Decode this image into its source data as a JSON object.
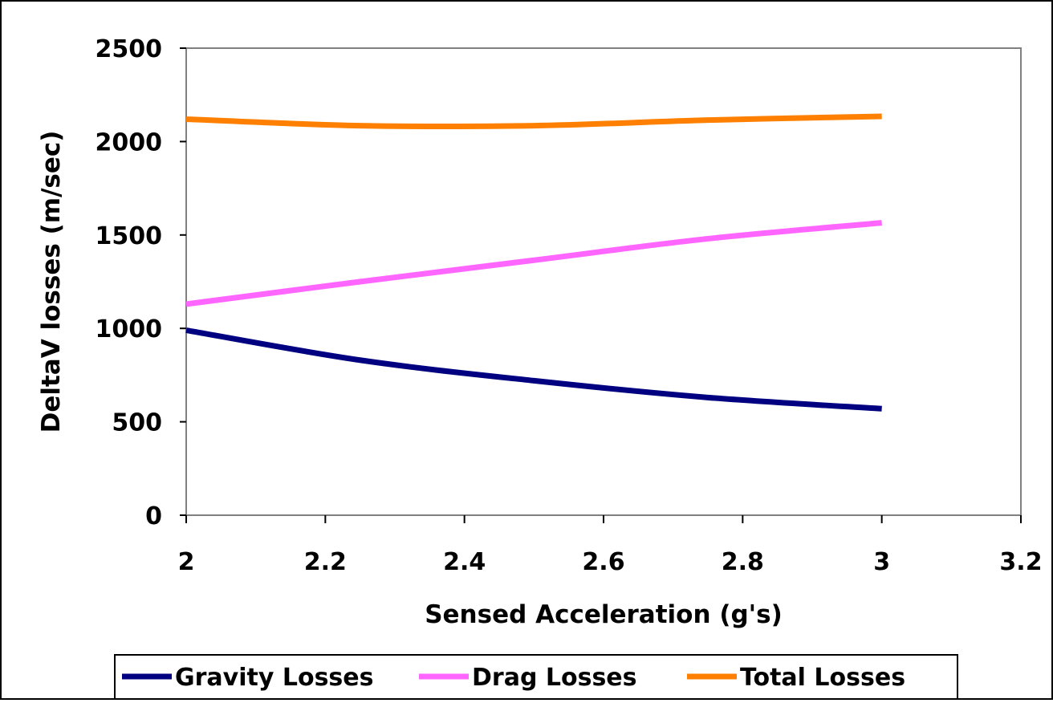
{
  "chart_data": {
    "type": "line",
    "title": "",
    "xlabel": "Sensed Acceleration (g's)",
    "ylabel": "DeltaV losses (m/sec)",
    "xlim": [
      2,
      3.2
    ],
    "ylim": [
      0,
      2500
    ],
    "x_ticks": [
      "2",
      "2.2",
      "2.4",
      "2.6",
      "2.8",
      "3",
      "3.2"
    ],
    "y_ticks": [
      "0",
      "500",
      "1000",
      "1500",
      "2000",
      "2500"
    ],
    "grid": false,
    "legend_position": "bottom",
    "series": [
      {
        "name": "Gravity Losses",
        "color": "#000080",
        "x": [
          2.0,
          2.25,
          2.5,
          2.75,
          3.0
        ],
        "y": [
          990,
          830,
          720,
          630,
          570
        ]
      },
      {
        "name": "Drag Losses",
        "color": "#FF66FF",
        "x": [
          2.0,
          2.25,
          2.5,
          2.75,
          3.0
        ],
        "y": [
          1130,
          1250,
          1365,
          1480,
          1565
        ]
      },
      {
        "name": "Total Losses",
        "color": "#FF8000",
        "x": [
          2.0,
          2.25,
          2.5,
          2.75,
          3.0
        ],
        "y": [
          2120,
          2085,
          2085,
          2115,
          2135
        ]
      }
    ]
  }
}
